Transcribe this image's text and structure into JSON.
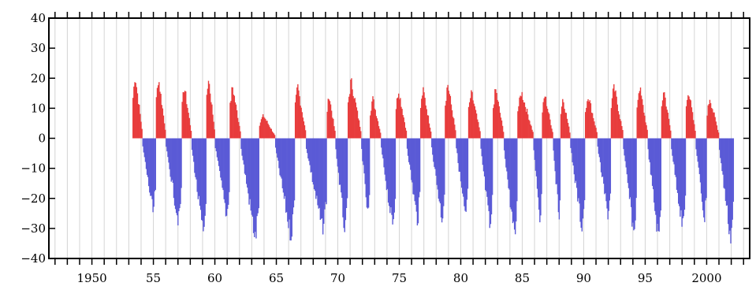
{
  "chart_data": {
    "type": "bar",
    "title": "",
    "xlabel": "",
    "ylabel": "",
    "xlim": [
      1946.5,
      2003.5
    ],
    "ylim": [
      -40,
      40
    ],
    "grid": "vertical lines every year",
    "x_tick_labels": [
      {
        "x": 1950,
        "label": "1950"
      },
      {
        "x": 1955,
        "label": "55"
      },
      {
        "x": 1960,
        "label": "60"
      },
      {
        "x": 1965,
        "label": "65"
      },
      {
        "x": 1970,
        "label": "70"
      },
      {
        "x": 1975,
        "label": "75"
      },
      {
        "x": 1980,
        "label": "80"
      },
      {
        "x": 1985,
        "label": "85"
      },
      {
        "x": 1990,
        "label": "90"
      },
      {
        "x": 1995,
        "label": "95"
      },
      {
        "x": 2000,
        "label": "2000"
      }
    ],
    "y_tick_labels": [
      {
        "y": 40,
        "label": "40"
      },
      {
        "y": 30,
        "label": "30"
      },
      {
        "y": 20,
        "label": "20"
      },
      {
        "y": 10,
        "label": "10"
      },
      {
        "y": 0,
        "label": "0"
      },
      {
        "y": -10,
        "label": "−10"
      },
      {
        "y": -20,
        "label": "−20"
      },
      {
        "y": -30,
        "label": "−30"
      },
      {
        "y": -40,
        "label": "−40"
      }
    ],
    "colors": {
      "positive": "#e83c3c",
      "negative": "#5a5ad6",
      "grid": "#d4d4d4",
      "axis": "#000000"
    },
    "series": [
      {
        "sign": "positive",
        "segments": [
          {
            "start": 1953.3,
            "end": 1954.1,
            "peak": 22
          },
          {
            "start": 1955.2,
            "end": 1956.0,
            "peak": 21
          },
          {
            "start": 1957.3,
            "end": 1958.1,
            "peak": 18
          },
          {
            "start": 1959.3,
            "end": 1960.0,
            "peak": 21
          },
          {
            "start": 1961.2,
            "end": 1962.1,
            "peak": 18
          },
          {
            "start": 1963.6,
            "end": 1964.9,
            "peak": 8
          },
          {
            "start": 1966.5,
            "end": 1967.4,
            "peak": 18
          },
          {
            "start": 1969.1,
            "end": 1969.8,
            "peak": 15
          },
          {
            "start": 1970.8,
            "end": 1971.9,
            "peak": 20
          },
          {
            "start": 1972.6,
            "end": 1973.5,
            "peak": 14
          },
          {
            "start": 1974.7,
            "end": 1975.6,
            "peak": 17
          },
          {
            "start": 1976.7,
            "end": 1977.6,
            "peak": 17
          },
          {
            "start": 1978.7,
            "end": 1979.6,
            "peak": 19
          },
          {
            "start": 1980.6,
            "end": 1981.6,
            "peak": 16
          },
          {
            "start": 1982.6,
            "end": 1983.5,
            "peak": 17
          },
          {
            "start": 1984.6,
            "end": 1985.9,
            "peak": 16
          },
          {
            "start": 1986.6,
            "end": 1987.5,
            "peak": 15
          },
          {
            "start": 1988.1,
            "end": 1988.9,
            "peak": 14
          },
          {
            "start": 1990.1,
            "end": 1991.1,
            "peak": 15
          },
          {
            "start": 1992.2,
            "end": 1993.2,
            "peak": 18
          },
          {
            "start": 1994.3,
            "end": 1995.2,
            "peak": 18
          },
          {
            "start": 1996.3,
            "end": 1997.1,
            "peak": 17
          },
          {
            "start": 1998.3,
            "end": 1999.1,
            "peak": 17
          },
          {
            "start": 2000.0,
            "end": 2001.0,
            "peak": 14
          }
        ]
      },
      {
        "sign": "negative",
        "segments": [
          {
            "start": 1954.1,
            "end": 1955.2,
            "trough": -26
          },
          {
            "start": 1956.0,
            "end": 1957.3,
            "trough": -29
          },
          {
            "start": 1958.1,
            "end": 1959.3,
            "trough": -34
          },
          {
            "start": 1960.0,
            "end": 1961.2,
            "trough": -27
          },
          {
            "start": 1962.1,
            "end": 1963.6,
            "trough": -35
          },
          {
            "start": 1964.9,
            "end": 1966.5,
            "trough": -34
          },
          {
            "start": 1967.4,
            "end": 1969.1,
            "trough": -32
          },
          {
            "start": 1969.8,
            "end": 1970.8,
            "trough": -33
          },
          {
            "start": 1971.9,
            "end": 1972.6,
            "trough": -28
          },
          {
            "start": 1973.5,
            "end": 1974.7,
            "trough": -31
          },
          {
            "start": 1975.6,
            "end": 1976.7,
            "trough": -29
          },
          {
            "start": 1977.6,
            "end": 1978.7,
            "trough": -28
          },
          {
            "start": 1979.6,
            "end": 1980.6,
            "trough": -28
          },
          {
            "start": 1981.6,
            "end": 1982.6,
            "trough": -32
          },
          {
            "start": 1983.5,
            "end": 1984.6,
            "trough": -35
          },
          {
            "start": 1985.9,
            "end": 1986.6,
            "trough": -28
          },
          {
            "start": 1987.5,
            "end": 1988.1,
            "trough": -27
          },
          {
            "start": 1988.9,
            "end": 1990.1,
            "trough": -31
          },
          {
            "start": 1991.1,
            "end": 1992.2,
            "trough": -27
          },
          {
            "start": 1993.2,
            "end": 1994.3,
            "trough": -33
          },
          {
            "start": 1995.2,
            "end": 1996.3,
            "trough": -35
          },
          {
            "start": 1997.1,
            "end": 1998.3,
            "trough": -31
          },
          {
            "start": 1999.1,
            "end": 2000.0,
            "trough": -28
          },
          {
            "start": 2001.0,
            "end": 2002.2,
            "trough": -35
          }
        ]
      }
    ]
  }
}
